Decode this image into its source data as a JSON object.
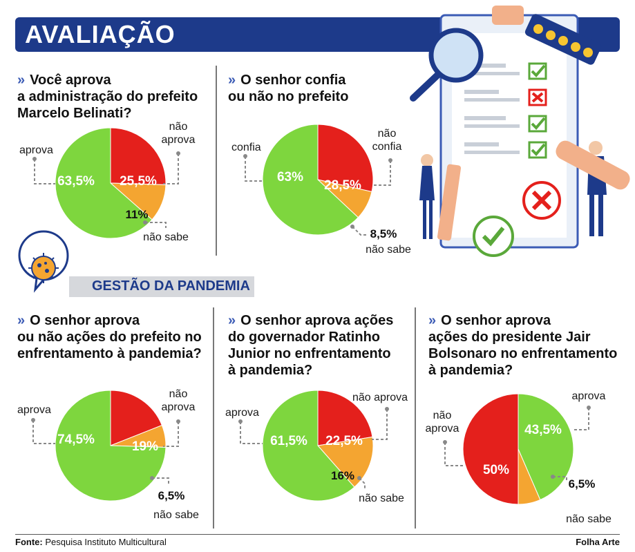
{
  "header": {
    "title": "AVALIAÇÃO"
  },
  "section_pandemic": {
    "title": "GESTÃO DA PANDEMIA"
  },
  "footer": {
    "source_label": "Fonte:",
    "source_text": "Pesquisa Instituto Multicultural",
    "credit": "Folha Arte"
  },
  "colors": {
    "green": "#7ed63e",
    "red": "#e4201c",
    "orange": "#f4a531",
    "navy": "#1d3a8a"
  },
  "icons": {
    "chevron": "double-chevron-icon",
    "virus": "virus-icon",
    "clipboard": "clipboard-checklist-icon"
  },
  "chart_data": [
    {
      "type": "pie",
      "title": "Você aprova a administração do prefeito Marcelo Belinati?",
      "labels": [
        "aprova",
        "não aprova",
        "não sabe"
      ],
      "values": [
        63.5,
        25.5,
        11
      ],
      "display": [
        "63,5%",
        "25,5%",
        "11%"
      ]
    },
    {
      "type": "pie",
      "title": "O senhor confia ou não no prefeito",
      "labels": [
        "confia",
        "não confia",
        "não sabe"
      ],
      "values": [
        63,
        28.5,
        8.5
      ],
      "display": [
        "63%",
        "28,5%",
        "8,5%"
      ]
    },
    {
      "type": "pie",
      "title": "O senhor aprova ou não ações do prefeito no enfrentamento à pandemia?",
      "labels": [
        "aprova",
        "não aprova",
        "não sabe"
      ],
      "values": [
        74.5,
        19,
        6.5
      ],
      "display": [
        "74,5%",
        "19%",
        "6,5%"
      ]
    },
    {
      "type": "pie",
      "title": "O senhor aprova ações do governador Ratinho Junior no enfrentamento à pandemia?",
      "labels": [
        "aprova",
        "não aprova",
        "não sabe"
      ],
      "values": [
        61.5,
        22.5,
        16
      ],
      "display": [
        "61,5%",
        "22,5%",
        "16%"
      ]
    },
    {
      "type": "pie",
      "title": "O senhor aprova ações do presidente Jair Bolsonaro no enfrentamento à pandemia?",
      "labels": [
        "aprova",
        "não aprova",
        "não sabe"
      ],
      "values": [
        43.5,
        50,
        6.5
      ],
      "display": [
        "43,5%",
        "50%",
        "6,5%"
      ]
    }
  ],
  "questions": [
    {
      "lines": [
        "Você  aprova",
        "a administração do prefeito",
        "Marcelo Belinati?"
      ]
    },
    {
      "lines": [
        "O senhor confia",
        "ou não no prefeito"
      ]
    },
    {
      "lines": [
        "O senhor aprova",
        "ou não ações do prefeito no",
        "enfrentamento à pandemia?"
      ]
    },
    {
      "lines": [
        "O senhor aprova ações",
        "do governador Ratinho",
        "Junior no enfrentamento",
        "à pandemia?"
      ]
    },
    {
      "lines": [
        "O senhor aprova",
        "ações do presidente Jair",
        "Bolsonaro no enfrentamento",
        "à pandemia?"
      ]
    }
  ],
  "legend_labels": {
    "c1": {
      "green": "aprova",
      "red": [
        "não",
        "aprova"
      ],
      "orange": "não sabe"
    },
    "c2": {
      "green": "confia",
      "red": [
        "não",
        "confia"
      ],
      "orange": "não sabe"
    },
    "c3": {
      "green": "aprova",
      "red": [
        "não",
        "aprova"
      ],
      "orange": "não sabe"
    },
    "c4": {
      "green": "aprova",
      "red": "não aprova",
      "orange": "não sabe"
    },
    "c5": {
      "green": "aprova",
      "red": [
        "não",
        "aprova"
      ],
      "orange": "não sabe"
    }
  }
}
